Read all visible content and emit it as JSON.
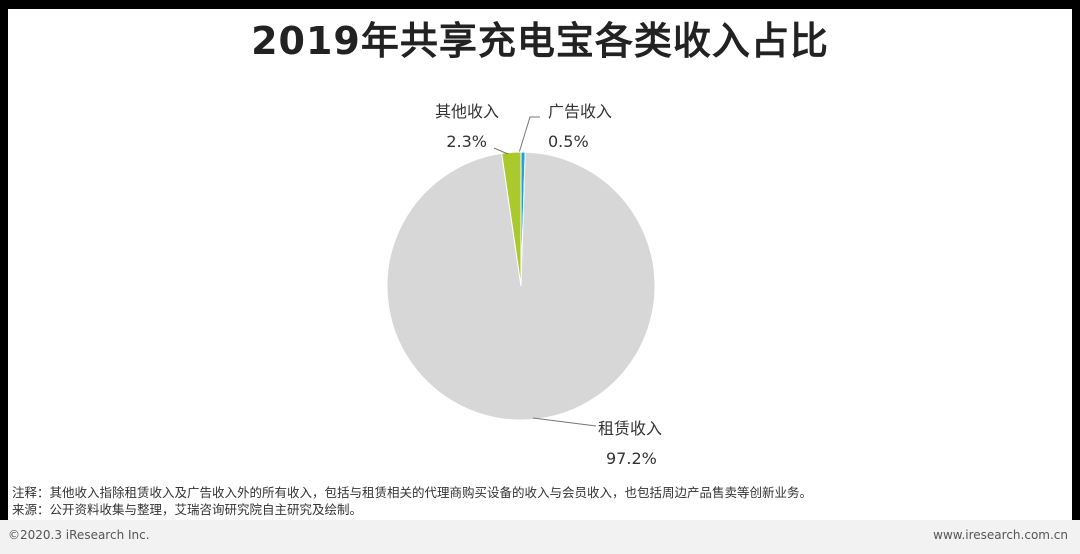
{
  "title": "2019年共享充电宝各类收入占比",
  "chart_data": {
    "type": "pie",
    "title": "2019年共享充电宝各类收入占比",
    "slices": [
      {
        "name": "广告收入",
        "value": 0.5,
        "label": "0.5%",
        "color": "#1aa3e0"
      },
      {
        "name": "租赁收入",
        "value": 97.2,
        "label": "97.2%",
        "color": "#d8d7d8"
      },
      {
        "name": "其他收入",
        "value": 2.3,
        "label": "2.3%",
        "color": "#a9c92d"
      }
    ]
  },
  "notes": {
    "note": "注释：其他收入指除租赁收入及广告收入外的所有收入，包括与租赁相关的代理商购买设备的收入与会员收入，也包括周边产品售卖等创新业务。",
    "source": "来源：公开资料收集与整理，艾瑞咨询研究院自主研究及绘制。"
  },
  "footer": {
    "copyright": "©2020.3 iResearch Inc.",
    "website": "www.iresearch.com.cn"
  }
}
